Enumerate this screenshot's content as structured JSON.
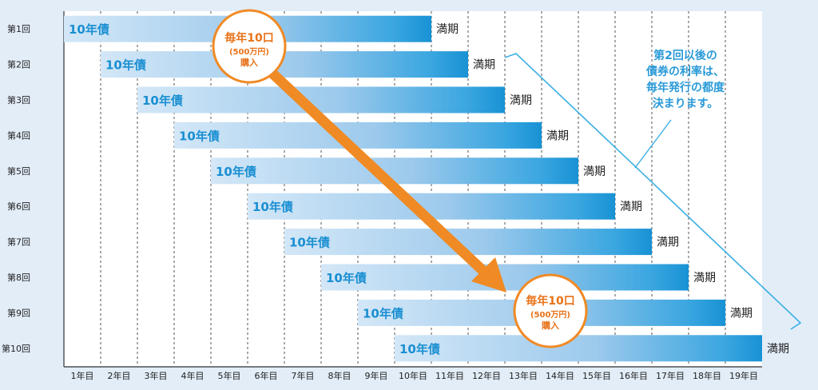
{
  "rows": [
    {
      "label": "第1回",
      "bond": "10年債",
      "maturity": "満期"
    },
    {
      "label": "第2回",
      "bond": "10年債",
      "maturity": "満期"
    },
    {
      "label": "第3回",
      "bond": "10年債",
      "maturity": "満期"
    },
    {
      "label": "第4回",
      "bond": "10年債",
      "maturity": "満期"
    },
    {
      "label": "第5回",
      "bond": "10年債",
      "maturity": "満期"
    },
    {
      "label": "第6回",
      "bond": "10年債",
      "maturity": "満期"
    },
    {
      "label": "第7回",
      "bond": "10年債",
      "maturity": "満期"
    },
    {
      "label": "第8回",
      "bond": "10年債",
      "maturity": "満期"
    },
    {
      "label": "第9回",
      "bond": "10年債",
      "maturity": "満期"
    },
    {
      "label": "第10回",
      "bond": "10年債",
      "maturity": "満期"
    }
  ],
  "years": [
    "1年目",
    "2年目",
    "3年目",
    "4年目",
    "5年目",
    "6年目",
    "7年目",
    "8年目",
    "9年目",
    "10年目",
    "11年目",
    "12年目",
    "13年目",
    "14年目",
    "15年目",
    "16年目",
    "17年目",
    "18年目",
    "19年目"
  ],
  "bubble": {
    "line1": "毎年10口",
    "line2": "(500万円)",
    "line3": "購入"
  },
  "note": {
    "line1": "第2回以後の",
    "line2": "債券の利率は、",
    "line3": "毎年発行の都度",
    "line4": "決まります。"
  },
  "colors": {
    "background": "#e2edf8",
    "bar_light": "#cfe4f6",
    "bar_dark": "#1e9ad8",
    "bond_text": "#1a8fd2",
    "arrow": "#f08a24",
    "bracket": "#3aaee2",
    "note_text": "#2a9ad8"
  }
}
